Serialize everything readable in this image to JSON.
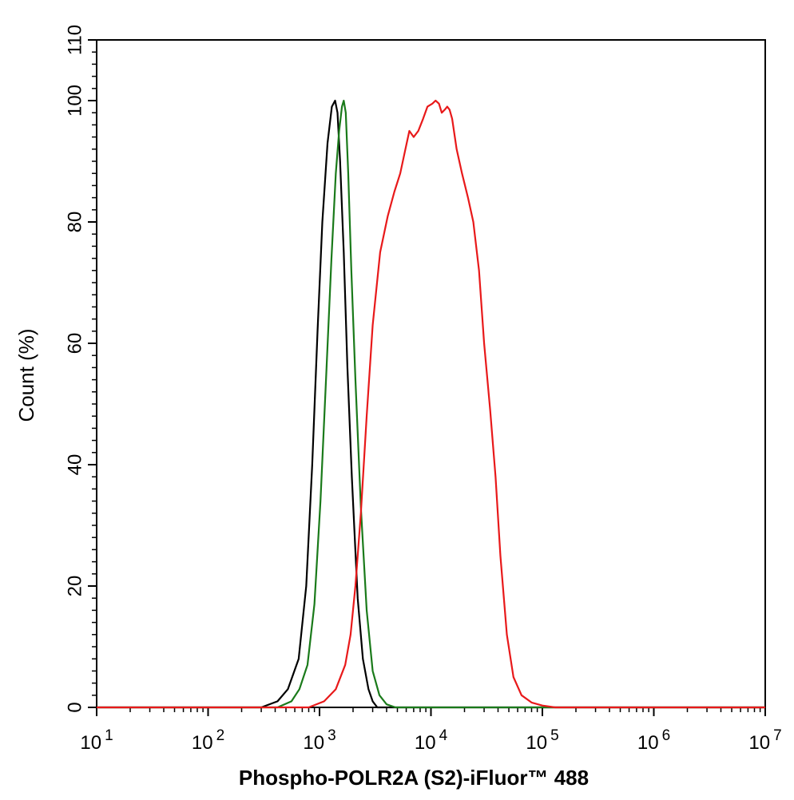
{
  "chart_data": {
    "type": "line",
    "xlabel": "Phospho-POLR2A (S2)-iFluor™ 488",
    "ylabel": "Count  (%)",
    "xscale": "log",
    "xlim": [
      10,
      10000000
    ],
    "ylim": [
      0,
      110
    ],
    "x_ticks": [
      {
        "value": 10,
        "base": "10",
        "exp": "1"
      },
      {
        "value": 100,
        "base": "10",
        "exp": "2"
      },
      {
        "value": 1000,
        "base": "10",
        "exp": "3"
      },
      {
        "value": 10000,
        "base": "10",
        "exp": "4"
      },
      {
        "value": 100000,
        "base": "10",
        "exp": "5"
      },
      {
        "value": 1000000,
        "base": "10",
        "exp": "6"
      },
      {
        "value": 10000000,
        "base": "10",
        "exp": "7"
      }
    ],
    "y_ticks": [
      "0",
      "20",
      "40",
      "60",
      "80",
      "100",
      "110"
    ],
    "grid": false,
    "legend": "none",
    "series": [
      {
        "color": "#000000",
        "x": [
          300,
          420,
          520,
          650,
          760,
          860,
          960,
          1060,
          1180,
          1290,
          1380,
          1450,
          1530,
          1650,
          1780,
          1950,
          2200,
          2450,
          2750,
          3000,
          3300
        ],
        "y": [
          0,
          1,
          3,
          8,
          20,
          40,
          62,
          80,
          93,
          99,
          100,
          98,
          90,
          75,
          56,
          38,
          18,
          8,
          3,
          1,
          0
        ]
      },
      {
        "color": "#1a7a1a",
        "x": [
          420,
          560,
          660,
          780,
          900,
          1020,
          1150,
          1280,
          1400,
          1500,
          1590,
          1650,
          1720,
          1810,
          1930,
          2100,
          2350,
          2650,
          3000,
          3450,
          4000,
          4800
        ],
        "y": [
          0,
          1,
          3,
          7,
          17,
          34,
          55,
          74,
          88,
          95,
          99,
          100,
          98,
          88,
          72,
          54,
          33,
          16,
          6,
          2,
          0.5,
          0
        ]
      },
      {
        "color": "#e8191a",
        "x": [
          800,
          1100,
          1400,
          1700,
          1900,
          2100,
          2350,
          2650,
          3000,
          3500,
          4100,
          4700,
          5300,
          5900,
          6400,
          7000,
          7700,
          8500,
          9300,
          10300,
          11000,
          11800,
          12500,
          13300,
          14000,
          14700,
          15500,
          17000,
          19000,
          21500,
          24000,
          27000,
          30000,
          34000,
          38000,
          42000,
          48000,
          55000,
          65000,
          80000,
          100000,
          130000,
          170000
        ],
        "y": [
          0,
          1,
          3,
          7,
          12,
          20,
          32,
          48,
          63,
          75,
          81,
          85,
          88,
          92,
          95,
          94,
          95,
          97,
          99,
          99.5,
          100,
          99.5,
          98,
          98.5,
          99,
          98.5,
          97,
          92,
          88,
          84,
          80,
          72,
          60,
          49,
          38,
          25,
          12,
          5,
          2,
          0.8,
          0.3,
          0,
          0
        ]
      }
    ]
  }
}
